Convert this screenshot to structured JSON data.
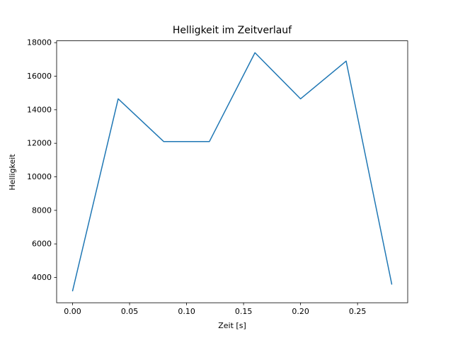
{
  "chart_data": {
    "type": "line",
    "title": "Helligkeit im Zeitverlauf",
    "xlabel": "Zeit [s]",
    "ylabel": "Helligkeit",
    "x": [
      0.0,
      0.04,
      0.08,
      0.12,
      0.16,
      0.2,
      0.24,
      0.28
    ],
    "y": [
      3200,
      14650,
      12100,
      12100,
      17400,
      14650,
      16900,
      3600
    ],
    "xlim": [
      -0.014,
      0.294
    ],
    "ylim": [
      2490,
      18110
    ],
    "x_ticks": [
      0.0,
      0.05,
      0.1,
      0.15,
      0.2,
      0.25
    ],
    "x_tick_labels": [
      "0.00",
      "0.05",
      "0.10",
      "0.15",
      "0.20",
      "0.25"
    ],
    "y_ticks": [
      4000,
      6000,
      8000,
      10000,
      12000,
      14000,
      16000,
      18000
    ],
    "y_tick_labels": [
      "4000",
      "6000",
      "8000",
      "10000",
      "12000",
      "14000",
      "16000",
      "18000"
    ],
    "line_color": "#1f77b4",
    "spine_color": "#000000",
    "background_color": "#ffffff",
    "grid": false,
    "legend": null
  }
}
